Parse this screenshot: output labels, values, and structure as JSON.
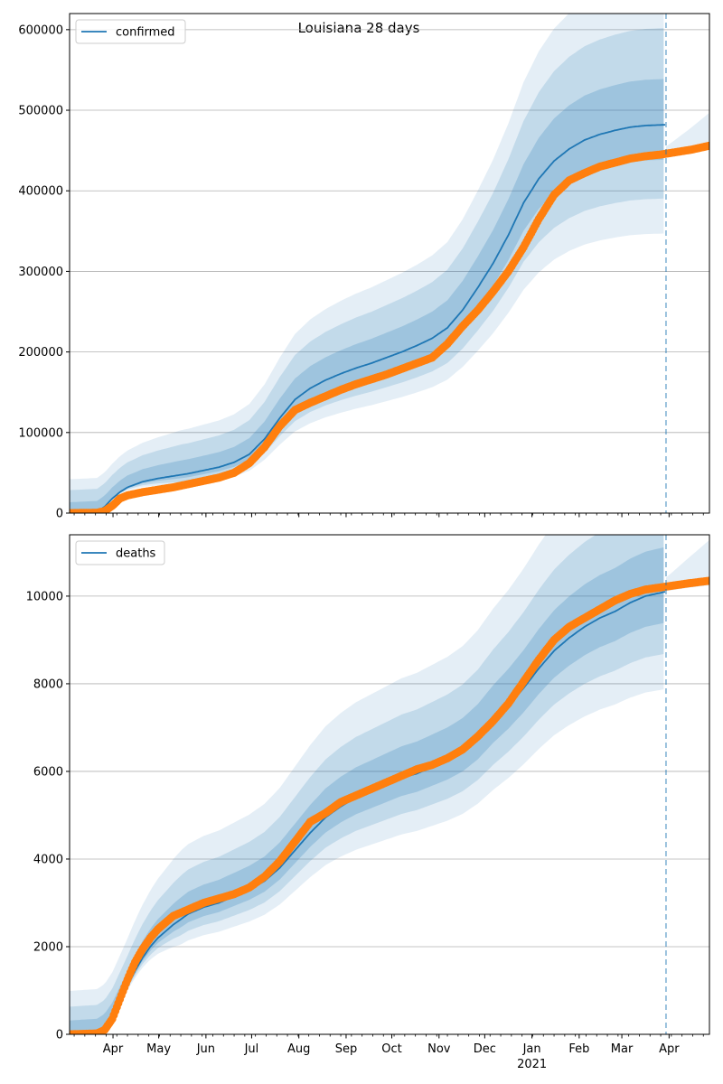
{
  "title": "Louisiana 28 days",
  "colors": {
    "model": "#1f77b4",
    "observed": "#ff7f0e",
    "band": "#1f77b4",
    "grid": "#b0b0b0",
    "forecast_line": "#1f77b4"
  },
  "x_axis": {
    "month_ticks": [
      {
        "label": "Apr",
        "day": 60.5
      },
      {
        "label": "May",
        "day": 90.5
      },
      {
        "label": "Jun",
        "day": 121.5
      },
      {
        "label": "Jul",
        "day": 151.5
      },
      {
        "label": "Aug",
        "day": 182.5
      },
      {
        "label": "Sep",
        "day": 213.5
      },
      {
        "label": "Oct",
        "day": 243.5
      },
      {
        "label": "Nov",
        "day": 274.5
      },
      {
        "label": "Dec",
        "day": 304.5
      },
      {
        "label": "Jan",
        "day": 335.5
      },
      {
        "label": "Feb",
        "day": 366.5
      },
      {
        "label": "Mar",
        "day": 394.5
      },
      {
        "label": "Apr",
        "day": 425.5
      }
    ],
    "year_label": "2021",
    "start_day": 32,
    "end_day": 452,
    "forecast_day": 423.5
  },
  "chart_data": [
    {
      "type": "line",
      "legend": "confirmed",
      "legend_position": "upper-left",
      "grid": true,
      "ylim": [
        0,
        620000
      ],
      "yticks": [
        0,
        100000,
        200000,
        300000,
        400000,
        500000,
        600000
      ],
      "ytick_labels": [
        "0",
        "100000",
        "200000",
        "300000",
        "400000",
        "500000",
        "600000"
      ],
      "model": {
        "days": [
          32,
          50,
          55,
          60,
          65,
          70,
          80,
          90,
          100,
          110,
          120,
          130,
          140,
          150,
          160,
          170,
          180,
          190,
          200,
          210,
          220,
          230,
          240,
          250,
          260,
          270,
          280,
          290,
          300,
          310,
          320,
          330,
          340,
          350,
          360,
          370,
          380,
          390,
          400,
          410,
          423
        ],
        "values": [
          0,
          1500,
          8000,
          18000,
          26000,
          32000,
          39000,
          43000,
          46000,
          49000,
          53000,
          57000,
          63000,
          73000,
          92000,
          118000,
          141000,
          155000,
          165000,
          173000,
          180000,
          186000,
          193000,
          200000,
          208000,
          217000,
          230000,
          252000,
          280000,
          310000,
          345000,
          385000,
          415000,
          437000,
          452000,
          463000,
          470000,
          475000,
          479000,
          481000,
          482000
        ]
      },
      "bands": [
        {
          "scale": 0.09,
          "opacity": 0.22
        },
        {
          "scale": 0.19,
          "opacity": 0.17
        },
        {
          "scale": 0.28,
          "opacity": 0.12
        }
      ],
      "observed": {
        "days": [
          32,
          50,
          55,
          60,
          65,
          70,
          80,
          90,
          100,
          110,
          120,
          130,
          140,
          150,
          160,
          170,
          180,
          190,
          200,
          210,
          220,
          230,
          240,
          250,
          260,
          270,
          280,
          290,
          300,
          310,
          320,
          330,
          340,
          350,
          360,
          370,
          380,
          390,
          400,
          410,
          420,
          430,
          440,
          452
        ],
        "values": [
          0,
          500,
          2500,
          9000,
          18000,
          22000,
          26000,
          29000,
          32000,
          36000,
          40000,
          44000,
          50000,
          62000,
          82000,
          108000,
          128000,
          137000,
          145000,
          153000,
          160000,
          166000,
          172000,
          179000,
          186000,
          193000,
          210000,
          232000,
          252000,
          275000,
          300000,
          330000,
          365000,
          395000,
          413000,
          422000,
          430000,
          435000,
          440000,
          443000,
          445000,
          448000,
          451000,
          456000
        ]
      }
    },
    {
      "type": "line",
      "legend": "deaths",
      "legend_position": "upper-left",
      "grid": true,
      "ylim": [
        0,
        11400
      ],
      "yticks": [
        0,
        2000,
        4000,
        6000,
        8000,
        10000
      ],
      "ytick_labels": [
        "0",
        "2000",
        "4000",
        "6000",
        "8000",
        "10000"
      ],
      "model": {
        "days": [
          32,
          50,
          55,
          60,
          65,
          70,
          75,
          80,
          85,
          90,
          95,
          100,
          110,
          120,
          130,
          140,
          150,
          160,
          170,
          180,
          190,
          200,
          210,
          220,
          230,
          240,
          250,
          260,
          270,
          280,
          290,
          300,
          310,
          320,
          330,
          340,
          350,
          360,
          370,
          380,
          390,
          400,
          410,
          423
        ],
        "values": [
          0,
          40,
          150,
          400,
          750,
          1100,
          1450,
          1750,
          2000,
          2200,
          2350,
          2500,
          2750,
          2900,
          3000,
          3150,
          3300,
          3500,
          3800,
          4200,
          4600,
          4950,
          5200,
          5400,
          5550,
          5700,
          5850,
          5950,
          6100,
          6250,
          6450,
          6750,
          7150,
          7500,
          7900,
          8350,
          8750,
          9050,
          9300,
          9500,
          9650,
          9850,
          10000,
          10100
        ]
      },
      "bands": [
        {
          "scale": 0.07,
          "opacity": 0.22
        },
        {
          "scale": 0.14,
          "opacity": 0.17
        },
        {
          "scale": 0.22,
          "opacity": 0.12
        }
      ],
      "observed": {
        "days": [
          32,
          50,
          55,
          60,
          65,
          70,
          75,
          80,
          85,
          90,
          95,
          100,
          110,
          120,
          130,
          140,
          150,
          160,
          170,
          180,
          190,
          200,
          210,
          220,
          230,
          240,
          250,
          260,
          270,
          280,
          290,
          300,
          310,
          320,
          330,
          340,
          350,
          360,
          370,
          380,
          390,
          400,
          410,
          420,
          430,
          440,
          452
        ],
        "values": [
          0,
          20,
          100,
          350,
          800,
          1250,
          1650,
          1950,
          2200,
          2400,
          2550,
          2700,
          2850,
          3000,
          3100,
          3200,
          3350,
          3600,
          3950,
          4400,
          4850,
          5050,
          5300,
          5450,
          5600,
          5750,
          5900,
          6050,
          6150,
          6300,
          6500,
          6800,
          7150,
          7550,
          8050,
          8550,
          9000,
          9300,
          9500,
          9700,
          9900,
          10050,
          10150,
          10200,
          10250,
          10300,
          10350
        ]
      }
    }
  ]
}
